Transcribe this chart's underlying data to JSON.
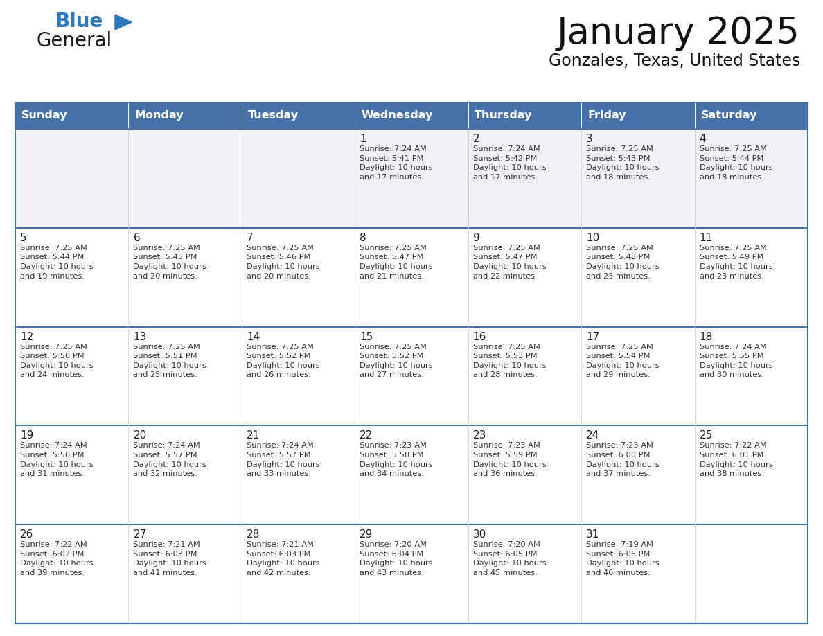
{
  "title": "January 2025",
  "subtitle": "Gonzales, Texas, United States",
  "header_bg": "#4472a8",
  "header_text": "#ffffff",
  "cell_bg_white": "#ffffff",
  "cell_bg_gray": "#f0f2f5",
  "border_color": "#4472a8",
  "row_sep_color": "#4472a8",
  "text_color": "#333333",
  "day_num_color": "#222222",
  "day_headers": [
    "Sunday",
    "Monday",
    "Tuesday",
    "Wednesday",
    "Thursday",
    "Friday",
    "Saturday"
  ],
  "logo_general_color": "#1a1a1a",
  "logo_blue_color": "#2a78c0",
  "logo_triangle_color": "#2a78c0",
  "weeks": [
    [
      {
        "day": null,
        "text": ""
      },
      {
        "day": null,
        "text": ""
      },
      {
        "day": null,
        "text": ""
      },
      {
        "day": 1,
        "text": "Sunrise: 7:24 AM\nSunset: 5:41 PM\nDaylight: 10 hours\nand 17 minutes."
      },
      {
        "day": 2,
        "text": "Sunrise: 7:24 AM\nSunset: 5:42 PM\nDaylight: 10 hours\nand 17 minutes."
      },
      {
        "day": 3,
        "text": "Sunrise: 7:25 AM\nSunset: 5:43 PM\nDaylight: 10 hours\nand 18 minutes."
      },
      {
        "day": 4,
        "text": "Sunrise: 7:25 AM\nSunset: 5:44 PM\nDaylight: 10 hours\nand 18 minutes."
      }
    ],
    [
      {
        "day": 5,
        "text": "Sunrise: 7:25 AM\nSunset: 5:44 PM\nDaylight: 10 hours\nand 19 minutes."
      },
      {
        "day": 6,
        "text": "Sunrise: 7:25 AM\nSunset: 5:45 PM\nDaylight: 10 hours\nand 20 minutes."
      },
      {
        "day": 7,
        "text": "Sunrise: 7:25 AM\nSunset: 5:46 PM\nDaylight: 10 hours\nand 20 minutes."
      },
      {
        "day": 8,
        "text": "Sunrise: 7:25 AM\nSunset: 5:47 PM\nDaylight: 10 hours\nand 21 minutes."
      },
      {
        "day": 9,
        "text": "Sunrise: 7:25 AM\nSunset: 5:47 PM\nDaylight: 10 hours\nand 22 minutes."
      },
      {
        "day": 10,
        "text": "Sunrise: 7:25 AM\nSunset: 5:48 PM\nDaylight: 10 hours\nand 23 minutes."
      },
      {
        "day": 11,
        "text": "Sunrise: 7:25 AM\nSunset: 5:49 PM\nDaylight: 10 hours\nand 23 minutes."
      }
    ],
    [
      {
        "day": 12,
        "text": "Sunrise: 7:25 AM\nSunset: 5:50 PM\nDaylight: 10 hours\nand 24 minutes."
      },
      {
        "day": 13,
        "text": "Sunrise: 7:25 AM\nSunset: 5:51 PM\nDaylight: 10 hours\nand 25 minutes."
      },
      {
        "day": 14,
        "text": "Sunrise: 7:25 AM\nSunset: 5:52 PM\nDaylight: 10 hours\nand 26 minutes."
      },
      {
        "day": 15,
        "text": "Sunrise: 7:25 AM\nSunset: 5:52 PM\nDaylight: 10 hours\nand 27 minutes."
      },
      {
        "day": 16,
        "text": "Sunrise: 7:25 AM\nSunset: 5:53 PM\nDaylight: 10 hours\nand 28 minutes."
      },
      {
        "day": 17,
        "text": "Sunrise: 7:25 AM\nSunset: 5:54 PM\nDaylight: 10 hours\nand 29 minutes."
      },
      {
        "day": 18,
        "text": "Sunrise: 7:24 AM\nSunset: 5:55 PM\nDaylight: 10 hours\nand 30 minutes."
      }
    ],
    [
      {
        "day": 19,
        "text": "Sunrise: 7:24 AM\nSunset: 5:56 PM\nDaylight: 10 hours\nand 31 minutes."
      },
      {
        "day": 20,
        "text": "Sunrise: 7:24 AM\nSunset: 5:57 PM\nDaylight: 10 hours\nand 32 minutes."
      },
      {
        "day": 21,
        "text": "Sunrise: 7:24 AM\nSunset: 5:57 PM\nDaylight: 10 hours\nand 33 minutes."
      },
      {
        "day": 22,
        "text": "Sunrise: 7:23 AM\nSunset: 5:58 PM\nDaylight: 10 hours\nand 34 minutes."
      },
      {
        "day": 23,
        "text": "Sunrise: 7:23 AM\nSunset: 5:59 PM\nDaylight: 10 hours\nand 36 minutes."
      },
      {
        "day": 24,
        "text": "Sunrise: 7:23 AM\nSunset: 6:00 PM\nDaylight: 10 hours\nand 37 minutes."
      },
      {
        "day": 25,
        "text": "Sunrise: 7:22 AM\nSunset: 6:01 PM\nDaylight: 10 hours\nand 38 minutes."
      }
    ],
    [
      {
        "day": 26,
        "text": "Sunrise: 7:22 AM\nSunset: 6:02 PM\nDaylight: 10 hours\nand 39 minutes."
      },
      {
        "day": 27,
        "text": "Sunrise: 7:21 AM\nSunset: 6:03 PM\nDaylight: 10 hours\nand 41 minutes."
      },
      {
        "day": 28,
        "text": "Sunrise: 7:21 AM\nSunset: 6:03 PM\nDaylight: 10 hours\nand 42 minutes."
      },
      {
        "day": 29,
        "text": "Sunrise: 7:20 AM\nSunset: 6:04 PM\nDaylight: 10 hours\nand 43 minutes."
      },
      {
        "day": 30,
        "text": "Sunrise: 7:20 AM\nSunset: 6:05 PM\nDaylight: 10 hours\nand 45 minutes."
      },
      {
        "day": 31,
        "text": "Sunrise: 7:19 AM\nSunset: 6:06 PM\nDaylight: 10 hours\nand 46 minutes."
      },
      {
        "day": null,
        "text": ""
      }
    ]
  ]
}
